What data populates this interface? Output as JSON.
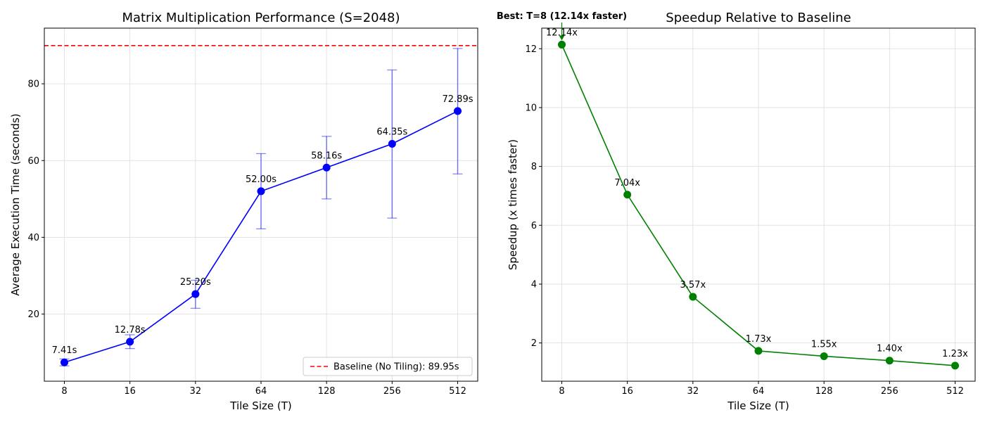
{
  "chart_data": [
    {
      "type": "line",
      "title": "Matrix Multiplication Performance (S=2048)",
      "xlabel": "Tile Size (T)",
      "ylabel": "Average Execution Time (seconds)",
      "x_scale": "log2",
      "categories": [
        "8",
        "16",
        "32",
        "64",
        "128",
        "256",
        "512"
      ],
      "x": [
        8,
        16,
        32,
        64,
        128,
        256,
        512
      ],
      "yticks": [
        "20",
        "40",
        "60",
        "80"
      ],
      "ylim": [
        2.5,
        94.5
      ],
      "grid": true,
      "series": [
        {
          "values": [
            7.41,
            12.78,
            25.2,
            52.0,
            58.16,
            64.35,
            72.89
          ],
          "error_low": [
            6.5,
            11.0,
            21.5,
            42.2,
            50.0,
            45.0,
            56.5
          ],
          "error_high": [
            8.3,
            14.6,
            28.8,
            61.8,
            66.3,
            83.6,
            89.2
          ],
          "point_labels": [
            "7.41s",
            "12.78s",
            "25.20s",
            "52.00s",
            "58.16s",
            "64.35s",
            "72.89s"
          ],
          "color": "#0000ff"
        }
      ],
      "reference_line": {
        "value": 89.95,
        "label": "Baseline (No Tiling): 89.95s",
        "color": "#ff0000",
        "style": "dashed"
      },
      "legend_position": "lower-right"
    },
    {
      "type": "line",
      "title": "Speedup Relative to Baseline",
      "xlabel": "Tile Size (T)",
      "ylabel": "Speedup (x times faster)",
      "x_scale": "log2",
      "categories": [
        "8",
        "16",
        "32",
        "64",
        "128",
        "256",
        "512"
      ],
      "x": [
        8,
        16,
        32,
        64,
        128,
        256,
        512
      ],
      "yticks": [
        "2",
        "4",
        "6",
        "8",
        "10",
        "12"
      ],
      "ylim": [
        0.7,
        12.7
      ],
      "grid": true,
      "series": [
        {
          "values": [
            12.14,
            7.04,
            3.57,
            1.73,
            1.55,
            1.4,
            1.23
          ],
          "point_labels": [
            "12.14x",
            "7.04x",
            "3.57x",
            "1.73x",
            "1.55x",
            "1.40x",
            "1.23x"
          ],
          "color": "#008000"
        }
      ],
      "annotation": {
        "text": "Best: T=8 (12.14x faster)",
        "x": 8,
        "y": 12.14
      }
    }
  ]
}
